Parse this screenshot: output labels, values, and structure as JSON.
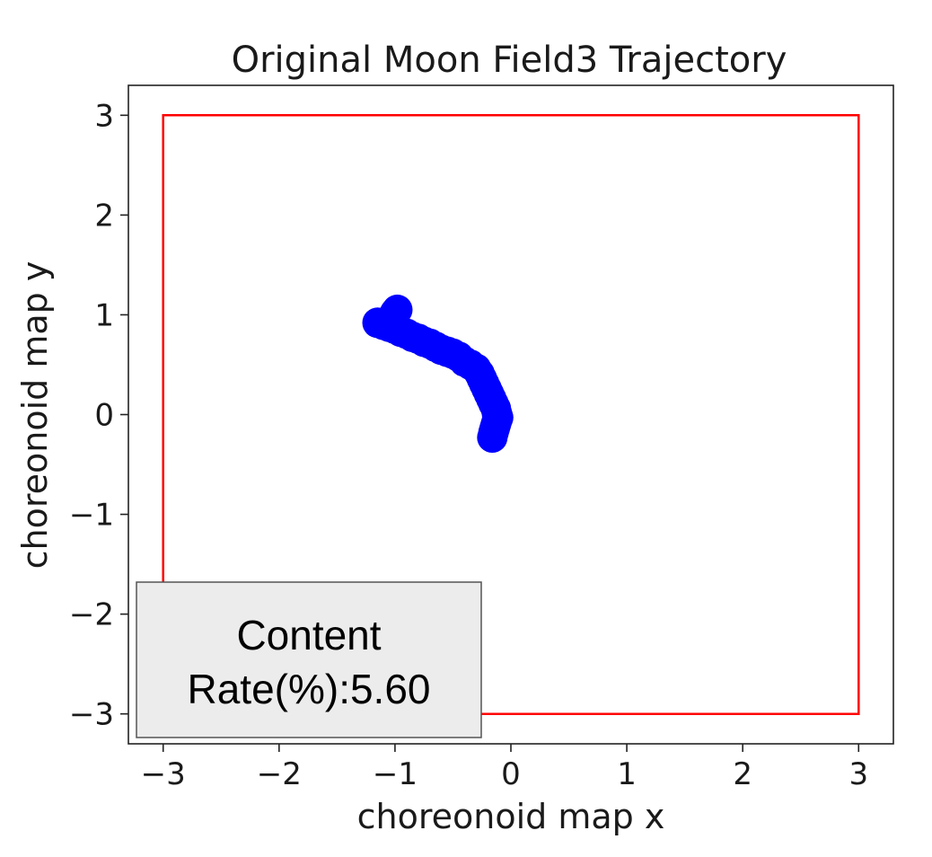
{
  "chart_data": {
    "type": "scatter",
    "title": "Original Moon Field3 Trajectory",
    "xlabel": "choreonoid map x",
    "ylabel": "choreonoid map y",
    "xlim": [
      -3.3,
      3.3
    ],
    "ylim": [
      -3.3,
      3.3
    ],
    "xticks": [
      -3,
      -2,
      -1,
      0,
      1,
      2,
      3
    ],
    "yticks": [
      -3,
      -2,
      -1,
      0,
      1,
      2,
      3
    ],
    "xtick_labels": [
      "−3",
      "−2",
      "−1",
      "0",
      "1",
      "2",
      "3"
    ],
    "ytick_labels": [
      "−3",
      "−2",
      "−1",
      "0",
      "1",
      "2",
      "3"
    ],
    "grid": false,
    "colors": {
      "trajectory": "#0000ff",
      "boundary": "#ff0000",
      "annotation_bg": "#ececec",
      "annotation_border": "#555555"
    },
    "boundary": {
      "x": [
        -3,
        3,
        3,
        -3,
        -3
      ],
      "y": [
        -3,
        -3,
        3,
        3,
        -3
      ]
    },
    "series": [
      {
        "x": [
          -1.15,
          -1.1,
          -1.05,
          -1.0,
          -0.95,
          -0.9,
          -0.85,
          -0.8,
          -0.75,
          -0.7,
          -0.65,
          -0.6,
          -0.55,
          -0.5,
          -0.45,
          -0.4,
          -0.35,
          -0.3,
          -0.27,
          -0.25,
          -0.23,
          -0.21,
          -0.19,
          -0.17,
          -0.15,
          -0.13,
          -0.12,
          -0.11,
          -0.12,
          -0.13,
          -0.14,
          -0.15,
          -0.16,
          -1.02,
          -1.0,
          -0.98
        ],
        "y": [
          0.92,
          0.9,
          0.88,
          0.86,
          0.83,
          0.81,
          0.78,
          0.76,
          0.73,
          0.71,
          0.68,
          0.65,
          0.63,
          0.61,
          0.58,
          0.53,
          0.5,
          0.46,
          0.41,
          0.36,
          0.31,
          0.26,
          0.21,
          0.16,
          0.11,
          0.06,
          0.01,
          -0.03,
          -0.06,
          -0.1,
          -0.14,
          -0.18,
          -0.23,
          0.98,
          1.02,
          1.05
        ]
      }
    ],
    "annotation": {
      "line1": "Content",
      "line2": "Rate(%):5.60",
      "placement": "bottom-left"
    }
  }
}
